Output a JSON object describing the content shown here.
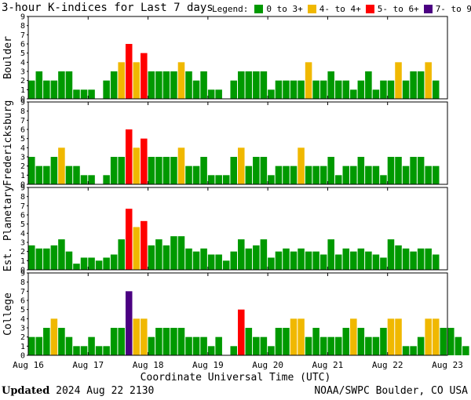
{
  "header": {
    "title": "3-hour K-indices for Last 7 days",
    "legend_label": "Legend:",
    "legend": [
      {
        "label": "0 to 3+",
        "color": "#009900"
      },
      {
        "label": "4- to 4+",
        "color": "#f0b800"
      },
      {
        "label": "5- to 6+",
        "color": "#ff0000"
      },
      {
        "label": "7- to 9",
        "color": "#4b0082"
      }
    ]
  },
  "footer": {
    "updated_label": "Updated",
    "updated_value": "2024 Aug 22 2130",
    "source": "NOAA/SWPC Boulder, CO USA"
  },
  "chart_data": {
    "type": "bar",
    "xlabel": "Coordinate Universal Time (UTC)",
    "x_ticks": [
      "Aug 16",
      "Aug 17",
      "Aug 18",
      "Aug 19",
      "Aug 20",
      "Aug 21",
      "Aug 22",
      "Aug 23"
    ],
    "ylim": [
      0,
      9
    ],
    "y_ticks": [
      0,
      1,
      2,
      3,
      4,
      5,
      6,
      7,
      8,
      9
    ],
    "bins_per_day": 8,
    "color_thresholds": {
      "green_below": 4,
      "yellow_below": 5,
      "red_below": 7
    },
    "panels": [
      {
        "name": "Boulder",
        "values": [
          2,
          3,
          2,
          2,
          3,
          3,
          1,
          1,
          1,
          0,
          2,
          3,
          4,
          6,
          4,
          5,
          3,
          3,
          3,
          3,
          4,
          3,
          2,
          3,
          1,
          1,
          0,
          2,
          3,
          3,
          3,
          3,
          1,
          2,
          2,
          2,
          2,
          4,
          2,
          2,
          3,
          2,
          2,
          1,
          2,
          3,
          1,
          2,
          2,
          4,
          2,
          3,
          3,
          4,
          2,
          0
        ]
      },
      {
        "name": "Fredericksburg",
        "values": [
          3,
          2,
          2,
          3,
          4,
          2,
          2,
          1,
          1,
          0,
          1,
          3,
          3,
          6,
          4,
          5,
          3,
          3,
          3,
          3,
          4,
          2,
          2,
          3,
          1,
          1,
          1,
          3,
          4,
          2,
          3,
          3,
          1,
          2,
          2,
          2,
          4,
          2,
          2,
          2,
          3,
          1,
          2,
          2,
          3,
          2,
          2,
          1,
          3,
          3,
          2,
          3,
          3,
          2,
          2,
          0
        ]
      },
      {
        "name": "Est. Planetary",
        "values": [
          2.67,
          2.33,
          2.33,
          2.67,
          3.33,
          2,
          0.67,
          1.33,
          1.33,
          1,
          1.33,
          1.67,
          3.33,
          6.67,
          4.67,
          5.33,
          2.67,
          3.33,
          2.67,
          3.67,
          3.67,
          2.33,
          2,
          2.33,
          1.67,
          1.67,
          1,
          2,
          3.33,
          2.33,
          2.67,
          3.33,
          1.33,
          2,
          2.33,
          2,
          2.33,
          2,
          2,
          1.67,
          3.33,
          1.67,
          2.33,
          2,
          2.33,
          2,
          1.67,
          1.33,
          3.33,
          2.67,
          2.33,
          2,
          2.33,
          2.33,
          1.67
        ]
      },
      {
        "name": "College",
        "values": [
          2,
          2,
          3,
          4,
          3,
          2,
          1,
          1,
          2,
          1,
          1,
          3,
          3,
          7,
          4,
          4,
          2,
          3,
          3,
          3,
          3,
          2,
          2,
          2,
          1,
          2,
          0,
          1,
          5,
          3,
          2,
          2,
          1,
          3,
          3,
          4,
          4,
          2,
          3,
          2,
          2,
          2,
          3,
          4,
          3,
          2,
          2,
          3,
          4,
          4,
          1,
          1,
          2,
          4,
          4,
          3,
          3,
          2,
          1,
          0
        ]
      }
    ]
  }
}
